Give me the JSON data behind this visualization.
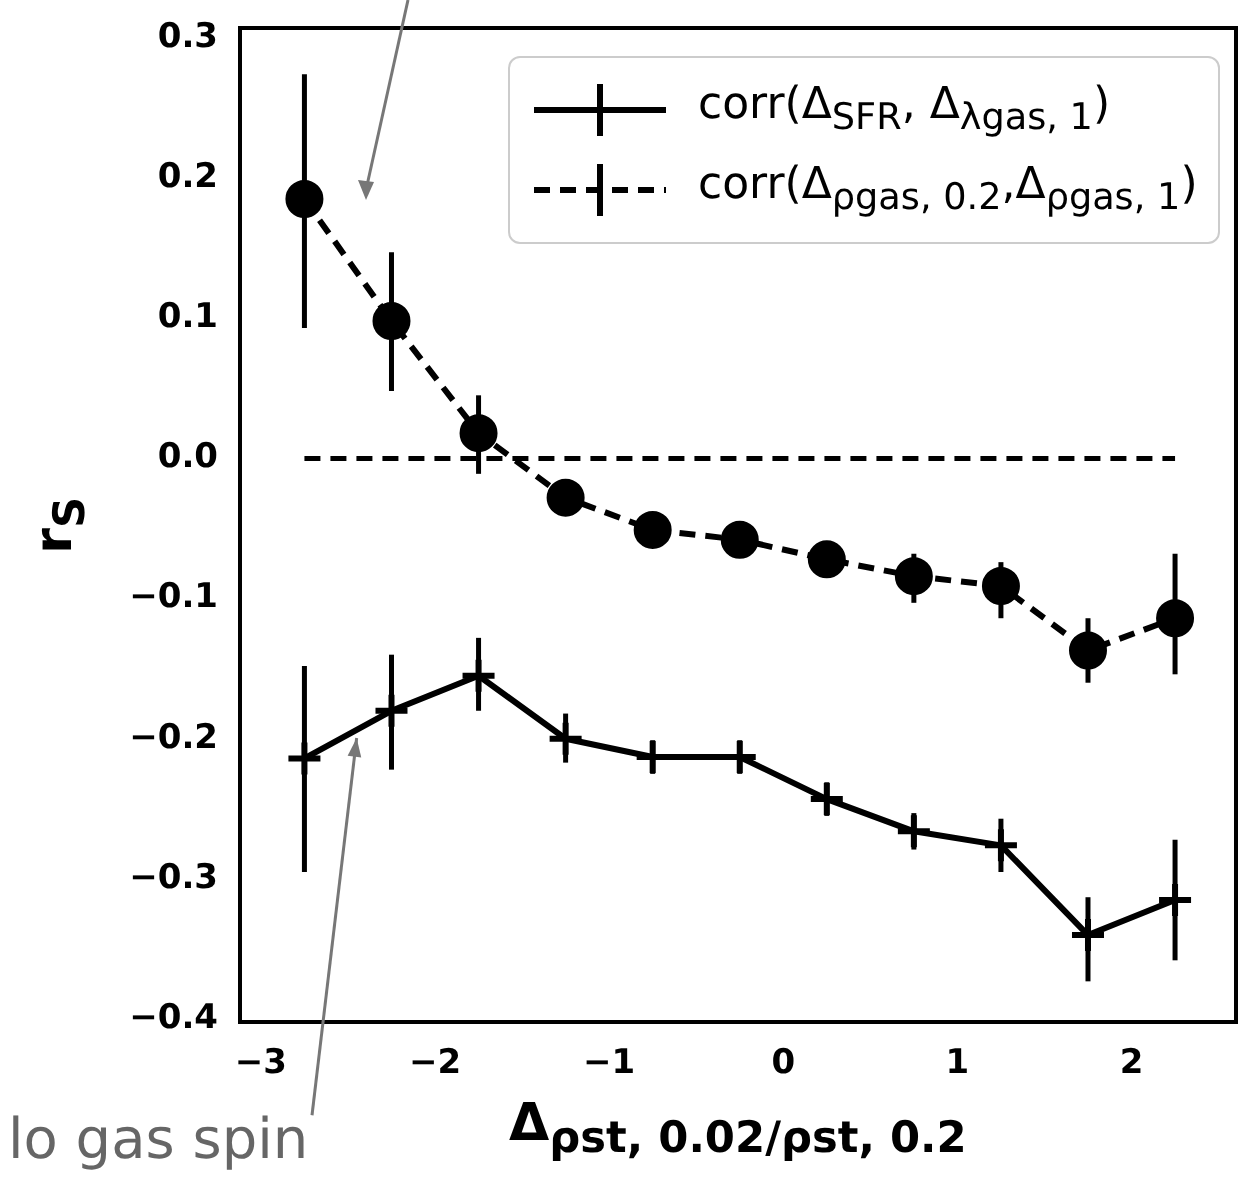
{
  "chart_data": {
    "type": "line",
    "xlabel": "Δ$_{ρst, 0.02/ρst, 0.2}$",
    "ylabel": "r$_{S}$",
    "x": [
      -2.75,
      -2.25,
      -1.75,
      -1.25,
      -0.75,
      -0.25,
      0.25,
      0.75,
      1.25,
      1.75,
      2.25
    ],
    "series": [
      {
        "name": "corr(Δ$_{SFR}$, Δ$_{λgas, 1}$)",
        "color": "#000000",
        "line_style": "solid",
        "marker": "cross",
        "values": [
          -0.214,
          -0.18,
          -0.155,
          -0.2,
          -0.213,
          -0.213,
          -0.243,
          -0.266,
          -0.276,
          -0.34,
          -0.315
        ],
        "errors": [
          [
            -0.295,
            -0.148
          ],
          [
            -0.222,
            -0.14
          ],
          [
            -0.18,
            -0.128
          ],
          [
            -0.217,
            -0.182
          ],
          [
            -0.225,
            -0.201
          ],
          [
            -0.225,
            -0.201
          ],
          [
            -0.255,
            -0.231
          ],
          [
            -0.279,
            -0.253
          ],
          [
            -0.295,
            -0.257
          ],
          [
            -0.373,
            -0.313
          ],
          [
            -0.358,
            -0.272
          ]
        ]
      },
      {
        "name": "corr(Δ$_{ρgas, 0.2}$,Δ$_{ρgas, 1}$)",
        "color": "#000000",
        "line_style": "dashed",
        "marker": "circle",
        "values": [
          0.185,
          0.098,
          0.018,
          -0.028,
          -0.051,
          -0.058,
          -0.072,
          -0.084,
          -0.091,
          -0.137,
          -0.114
        ],
        "errors": [
          [
            0.093,
            0.274
          ],
          [
            0.048,
            0.147
          ],
          [
            -0.011,
            0.045
          ],
          [
            -0.04,
            -0.016
          ],
          [
            -0.061,
            -0.041
          ],
          [
            -0.068,
            -0.048
          ],
          [
            -0.082,
            -0.062
          ],
          [
            -0.103,
            -0.068
          ],
          [
            -0.114,
            -0.074
          ],
          [
            -0.16,
            -0.114
          ],
          [
            -0.154,
            -0.068
          ]
        ]
      }
    ],
    "xlim": [
      -3.12,
      2.6
    ],
    "xticks": [
      {
        "value": -3,
        "label": "−3"
      },
      {
        "value": -2,
        "label": "−2"
      },
      {
        "value": -1,
        "label": "−1"
      },
      0,
      1,
      2
    ],
    "ylim": [
      -0.402,
      0.307
    ],
    "yticks": [
      {
        "value": -0.4,
        "label": "−0.4"
      },
      {
        "value": -0.3,
        "label": "−0.3"
      },
      {
        "value": -0.2,
        "label": "−0.2"
      },
      {
        "value": -0.1,
        "label": "−0.1"
      },
      {
        "value": 0,
        "label": "0.0"
      },
      0.1,
      0.2,
      0.3
    ],
    "ref_lines": [
      {
        "axis": "y",
        "value": 0,
        "color": "#000000",
        "line_style": "dashed"
      }
    ],
    "annotations": [
      {
        "text": "lo gas spin",
        "x": -2.45,
        "y": -0.2
      }
    ],
    "legend": "top right",
    "grid": false
  }
}
